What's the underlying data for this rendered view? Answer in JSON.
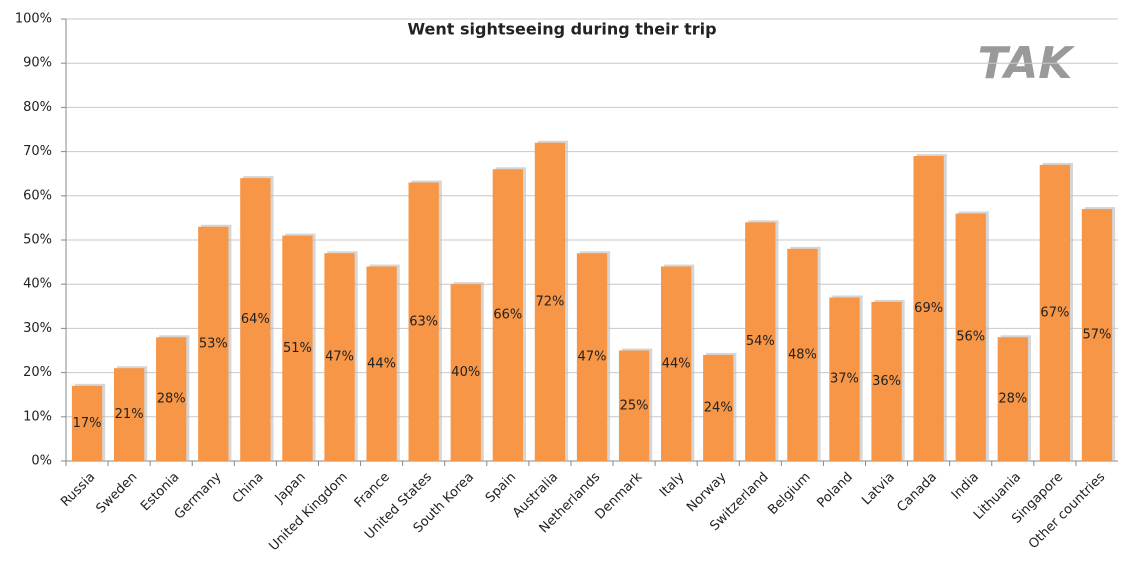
{
  "chart_data": {
    "type": "bar",
    "title": "Went sightseeing during their trip",
    "logo": "TAK",
    "categories": [
      "Russia",
      "Sweden",
      "Estonia",
      "Germany",
      "China",
      "Japan",
      "United Kingdom",
      "France",
      "United States",
      "South Korea",
      "Spain",
      "Australia",
      "Netherlands",
      "Denmark",
      "Italy",
      "Norway",
      "Switzerland",
      "Belgium",
      "Poland",
      "Latvia",
      "Canada",
      "India",
      "Lithuania",
      "Singapore",
      "Other countries"
    ],
    "values": [
      17,
      21,
      28,
      53,
      64,
      51,
      47,
      44,
      63,
      40,
      66,
      72,
      47,
      25,
      44,
      24,
      54,
      48,
      37,
      36,
      69,
      56,
      28,
      67,
      57
    ],
    "value_labels": [
      "17%",
      "21%",
      "28%",
      "53%",
      "64%",
      "51%",
      "47%",
      "44%",
      "63%",
      "40%",
      "66%",
      "72%",
      "47%",
      "25%",
      "44%",
      "24%",
      "54%",
      "48%",
      "37%",
      "36%",
      "69%",
      "56%",
      "28%",
      "67%",
      "57%"
    ],
    "color": "#f79646",
    "ylim": [
      0,
      100
    ],
    "yticks": [
      {
        "value": 0,
        "label": "0%"
      },
      {
        "value": 10,
        "label": "10%"
      },
      {
        "value": 20,
        "label": "20%"
      },
      {
        "value": 30,
        "label": "30%"
      },
      {
        "value": 40,
        "label": "40%"
      },
      {
        "value": 50,
        "label": "50%"
      },
      {
        "value": 60,
        "label": "60%"
      },
      {
        "value": 70,
        "label": "70%"
      },
      {
        "value": 80,
        "label": "80%"
      },
      {
        "value": 90,
        "label": "90%"
      },
      {
        "value": 100,
        "label": "100%"
      }
    ],
    "grid": true
  }
}
